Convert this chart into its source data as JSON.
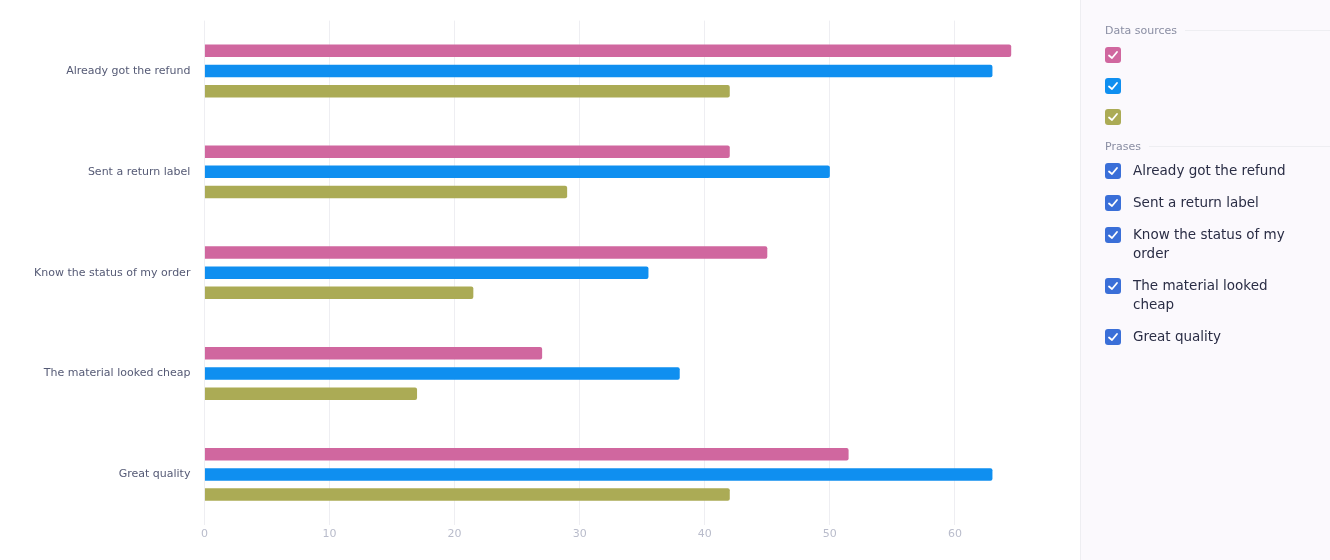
{
  "chart_data": {
    "type": "bar",
    "orientation": "horizontal",
    "categories": [
      "Already got the refund",
      "Sent a return label",
      "Know the status of my order",
      "The material looked cheap",
      "Great quality"
    ],
    "series": [
      {
        "color": "#d0679f",
        "values": [
          64.5,
          42,
          45,
          27,
          51.5
        ]
      },
      {
        "color": "#0f8ff0",
        "values": [
          63,
          50,
          35.5,
          38,
          63
        ]
      },
      {
        "color": "#abab55",
        "values": [
          42,
          29,
          21.5,
          17,
          42
        ]
      }
    ],
    "xlim": [
      0,
      70
    ],
    "xticks": [
      0,
      10,
      20,
      30,
      40,
      50,
      60
    ],
    "grid": "x",
    "legend_title": "Data sources",
    "annotations": [
      "Prases"
    ]
  }
}
